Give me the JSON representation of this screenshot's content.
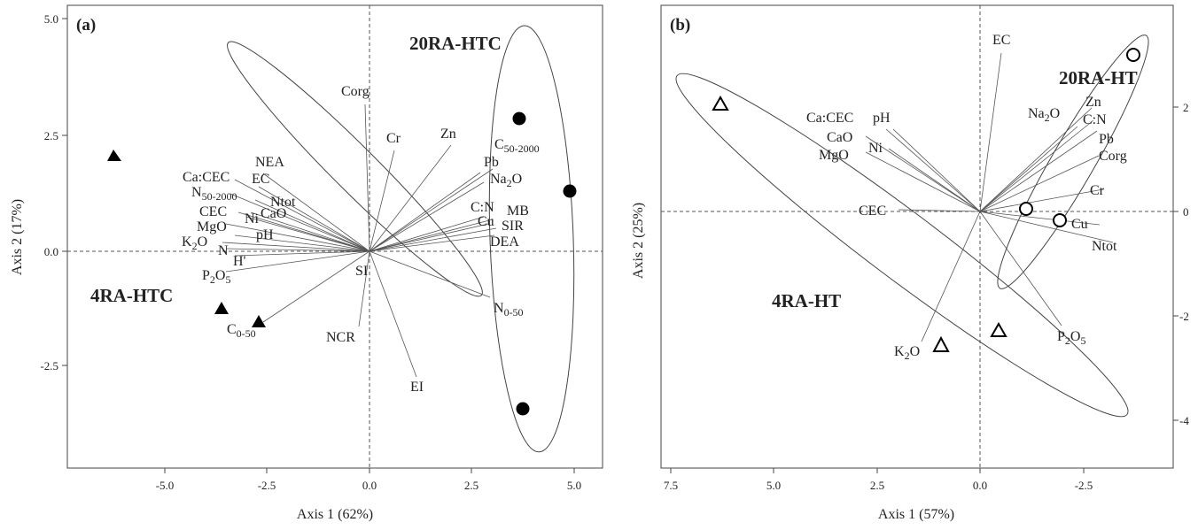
{
  "chart_data": [
    {
      "panel_label": "(a)",
      "type": "scatter",
      "xlabel": "Axis 1 (62%)",
      "ylabel": "Axis 2 (17%)",
      "xlim": [
        -7.0,
        5.8
      ],
      "ylim": [
        -4.7,
        5.2
      ],
      "xticks": [
        -5.0,
        -2.5,
        0.0,
        2.5,
        5.0
      ],
      "xtick_labels": [
        "-5.0",
        "-2.5",
        "0.0",
        "2.5",
        "5.0"
      ],
      "yticks": [
        -2.5,
        0.0,
        2.5,
        5.0
      ],
      "ytick_labels": [
        "-2.5",
        "0.0",
        "2.5",
        "5.0"
      ],
      "groups": [
        {
          "name": "4RA-HTC",
          "marker": "filled-triangle",
          "points": [
            [
              -6.3,
              2.1
            ],
            [
              -3.6,
              -1.25
            ],
            [
              -2.7,
              -1.55
            ]
          ]
        },
        {
          "name": "20RA-HTC",
          "marker": "filled-circle",
          "points": [
            [
              3.7,
              2.85
            ],
            [
              4.9,
              1.3
            ],
            [
              3.8,
              -3.4
            ]
          ]
        }
      ],
      "vectors": [
        {
          "label": "Corg",
          "x": -0.1,
          "y": 3.2
        },
        {
          "label": "Cr",
          "x": 0.65,
          "y": 2.2
        },
        {
          "label": "Zn",
          "x": 2.0,
          "y": 2.3
        },
        {
          "label": "Pb",
          "x": 2.7,
          "y": 1.7
        },
        {
          "label": "Na2O",
          "x": 2.8,
          "y": 1.5
        },
        {
          "label": "C:N",
          "x": 2.8,
          "y": 0.75
        },
        {
          "label": "Cu",
          "x": 2.9,
          "y": 0.6
        },
        {
          "label": "MB",
          "x": 3.0,
          "y": 0.7
        },
        {
          "label": "SIR",
          "x": 3.1,
          "y": 0.5
        },
        {
          "label": "DEA",
          "x": 3.05,
          "y": 0.35
        },
        {
          "label": "C50-2000",
          "x": 3.0,
          "y": 1.8
        },
        {
          "label": "NEA",
          "x": -2.6,
          "y": 1.7
        },
        {
          "label": "EC",
          "x": -2.7,
          "y": 1.4
        },
        {
          "label": "Ntot",
          "x": -2.8,
          "y": 1.1
        },
        {
          "label": "Ca:CEC",
          "x": -3.3,
          "y": 1.55
        },
        {
          "label": "N50-2000",
          "x": -3.4,
          "y": 1.25
        },
        {
          "label": "CaO",
          "x": -2.9,
          "y": 0.85
        },
        {
          "label": "Ni",
          "x": -3.0,
          "y": 0.75
        },
        {
          "label": "CEC",
          "x": -3.2,
          "y": 0.85
        },
        {
          "label": "MgO",
          "x": -3.5,
          "y": 0.6
        },
        {
          "label": "pH",
          "x": -3.3,
          "y": 0.35
        },
        {
          "label": "K2O",
          "x": -3.6,
          "y": 0.2
        },
        {
          "label": "N",
          "x": -3.5,
          "y": 0.05
        },
        {
          "label": "H'",
          "x": -3.3,
          "y": -0.1
        },
        {
          "label": "P2O5",
          "x": -3.5,
          "y": -0.45
        },
        {
          "label": "C0-50",
          "x": -2.6,
          "y": -1.55
        },
        {
          "label": "NCR",
          "x": -0.25,
          "y": -1.65
        },
        {
          "label": "EI",
          "x": 1.15,
          "y": -2.75
        },
        {
          "label": "N0-50",
          "x": 2.95,
          "y": -1.0
        },
        {
          "label": "SI",
          "x": -0.05,
          "y": -0.05
        }
      ]
    },
    {
      "panel_label": "(b)",
      "type": "scatter",
      "xlabel": "Axis 1 (57%)",
      "ylabel": "Axis 2 (25%)",
      "xlim": [
        7.9,
        -4.2
      ],
      "ylim": [
        -5.0,
        3.5
      ],
      "xticks": [
        7.5,
        5.0,
        2.5,
        0.0,
        -2.5
      ],
      "xtick_labels": [
        "7.5",
        "5.0",
        "2.5",
        "0.0",
        "-2.5"
      ],
      "yticks": [
        -4,
        -2,
        0,
        2
      ],
      "ytick_labels": [
        "-4",
        "-2",
        "0",
        "2"
      ],
      "groups": [
        {
          "name": "4RA-HT",
          "marker": "open-triangle",
          "points": [
            [
              6.2,
              2.05
            ],
            [
              0.9,
              -2.6
            ],
            [
              -0.5,
              -2.3
            ]
          ]
        },
        {
          "name": "20RA-HT",
          "marker": "open-circle",
          "points": [
            [
              -3.7,
              3.0
            ],
            [
              -1.1,
              0.05
            ],
            [
              -1.95,
              -0.18
            ]
          ]
        }
      ],
      "vectors": [
        {
          "label": "EC",
          "x": -0.3,
          "y": 3.05
        },
        {
          "label": "Ca:CEC",
          "x": 2.2,
          "y": 1.6
        },
        {
          "label": "pH",
          "x": 2.1,
          "y": 1.6
        },
        {
          "label": "CaO",
          "x": 2.15,
          "y": 1.45
        },
        {
          "label": "Ni",
          "x": 2.15,
          "y": 1.2
        },
        {
          "label": "MgO",
          "x": 2.45,
          "y": 1.15
        },
        {
          "label": "CEC",
          "x": 1.9,
          "y": 0.05
        },
        {
          "label": "K2O",
          "x": 1.3,
          "y": -2.5
        },
        {
          "label": "Na2O",
          "x": -2.3,
          "y": 1.55
        },
        {
          "label": "Zn",
          "x": -2.7,
          "y": 2.0
        },
        {
          "label": "C:N",
          "x": -2.7,
          "y": 1.75
        },
        {
          "label": "Pb",
          "x": -2.75,
          "y": 1.55
        },
        {
          "label": "Corg",
          "x": -2.9,
          "y": 1.1
        },
        {
          "label": "Cr",
          "x": -3.0,
          "y": 0.4
        },
        {
          "label": "Cu",
          "x": -2.9,
          "y": -0.25
        },
        {
          "label": "Ntot",
          "x": -3.2,
          "y": -0.6
        },
        {
          "label": "P2O5",
          "x": -2.45,
          "y": -2.3
        }
      ]
    }
  ]
}
